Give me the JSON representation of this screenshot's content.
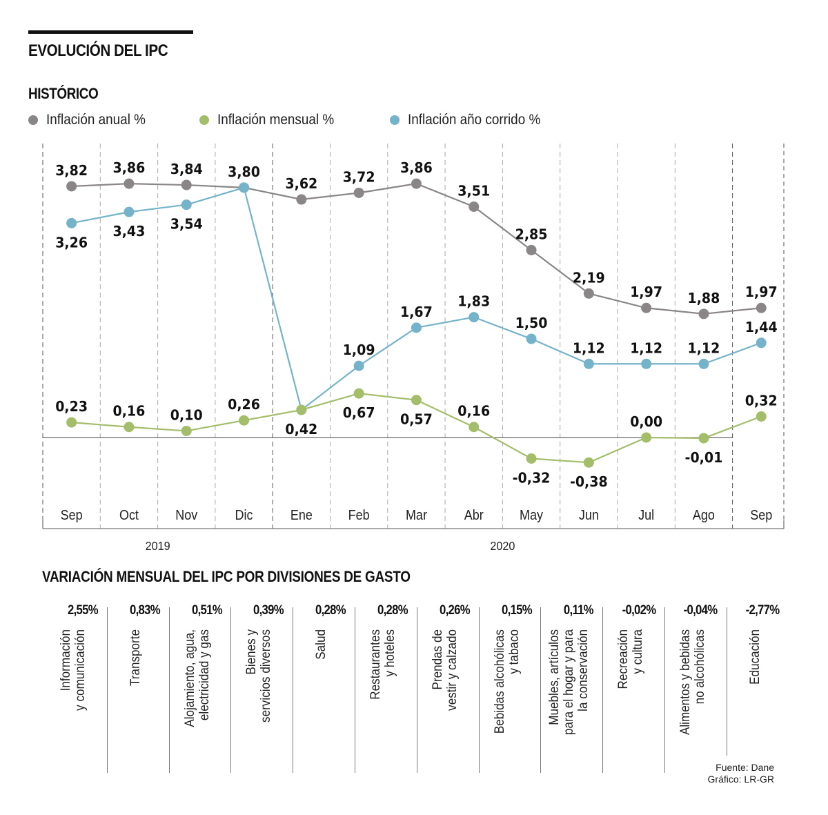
{
  "header": {
    "title": "EVOLUCIÓN DEL IPC",
    "subtitle": "HISTÓRICO"
  },
  "colors": {
    "anual": "#8a8587",
    "mensual": "#a3bd6a",
    "corrido": "#74b3c9"
  },
  "chart_data": {
    "type": "line",
    "title": "EVOLUCIÓN DEL IPC — HISTÓRICO",
    "xlabel": "",
    "ylabel": "",
    "categories": [
      "Sep",
      "Oct",
      "Nov",
      "Dic",
      "Ene",
      "Feb",
      "Mar",
      "Abr",
      "May",
      "Jun",
      "Jul",
      "Ago",
      "Sep"
    ],
    "year_labels": [
      {
        "label": "2019",
        "span": [
          "Sep",
          "Dic"
        ]
      },
      {
        "label": "2020",
        "span": [
          "Ene",
          "Sep"
        ]
      }
    ],
    "series": [
      {
        "name": "Inflación anual %",
        "key": "anual",
        "values": [
          3.82,
          3.86,
          3.84,
          3.8,
          3.62,
          3.72,
          3.86,
          3.51,
          2.85,
          2.19,
          1.97,
          1.88,
          1.97
        ],
        "labels": [
          "3,82",
          "3,86",
          "3,84",
          "3,80",
          "3,62",
          "3,72",
          "3,86",
          "3,51",
          "2,85",
          "2,19",
          "1,97",
          "1,88",
          "1,97"
        ],
        "label_pos": [
          "above",
          "above",
          "above",
          "above",
          "above",
          "above",
          "above",
          "above",
          "above",
          "above",
          "above",
          "above",
          "above"
        ]
      },
      {
        "name": "Inflación mensual %",
        "key": "mensual",
        "values": [
          0.23,
          0.16,
          0.1,
          0.26,
          0.42,
          0.67,
          0.57,
          0.16,
          -0.32,
          -0.38,
          0.0,
          -0.01,
          0.32
        ],
        "labels": [
          "0,23",
          "0,16",
          "0,10",
          "0,26",
          "0,42",
          "0,67",
          "0,57",
          "0,16",
          "-0,32",
          "-0,38",
          "0,00",
          "-0,01",
          "0,32"
        ],
        "label_pos": [
          "above",
          "above",
          "above",
          "above",
          "below",
          "below",
          "below",
          "above",
          "below",
          "below",
          "above",
          "below",
          "above"
        ]
      },
      {
        "name": "Inflación año corrido %",
        "key": "corrido",
        "values": [
          3.26,
          3.43,
          3.54,
          3.8,
          0.42,
          1.09,
          1.67,
          1.83,
          1.5,
          1.12,
          1.12,
          1.12,
          1.44
        ],
        "labels": [
          "3,26",
          "3,43",
          "3,54",
          "",
          "",
          "1,09",
          "1,67",
          "1,83",
          "1,50",
          "1,12",
          "1,12",
          "1,12",
          "1,44"
        ],
        "label_pos": [
          "below",
          "below",
          "below",
          "none",
          "none",
          "above",
          "above",
          "above",
          "above",
          "above",
          "above",
          "above",
          "above"
        ]
      }
    ],
    "ylim": [
      -0.5,
      4.2
    ],
    "grid": "vertical dashed separators per month",
    "zero_line": true,
    "legend": "top-left"
  },
  "divisions": {
    "title": "VARIACIÓN MENSUAL DEL IPC POR DIVISIONES DE GASTO",
    "items": [
      {
        "value": "2,55%",
        "lines": [
          "Información",
          "y comunicación"
        ]
      },
      {
        "value": "0,83%",
        "lines": [
          "Transporte"
        ]
      },
      {
        "value": "0,51%",
        "lines": [
          "Alojamiento, agua,",
          "electricidad y gas"
        ]
      },
      {
        "value": "0,39%",
        "lines": [
          "Bienes y",
          "servicios diversos"
        ]
      },
      {
        "value": "0,28%",
        "lines": [
          "Salud"
        ]
      },
      {
        "value": "0,28%",
        "lines": [
          "Restaurantes",
          "y hoteles"
        ]
      },
      {
        "value": "0,26%",
        "lines": [
          "Prendas de",
          "vestir y calzado"
        ]
      },
      {
        "value": "0,15%",
        "lines": [
          "Bebidas alcohólicas",
          "y tabaco"
        ]
      },
      {
        "value": "0,11%",
        "lines": [
          "Muebles, artículos",
          "para el hogar y para",
          "la conservación"
        ]
      },
      {
        "value": "-0,02%",
        "lines": [
          "Recreación",
          "y cultura"
        ]
      },
      {
        "value": "-0,04%",
        "lines": [
          "Alimentos y bebidas",
          "no alcohólicas"
        ]
      },
      {
        "value": "-2,77%",
        "lines": [
          "Educación"
        ]
      }
    ]
  },
  "footer": {
    "source": "Fuente: Dane",
    "credit": "Gráfico: LR-GR"
  }
}
